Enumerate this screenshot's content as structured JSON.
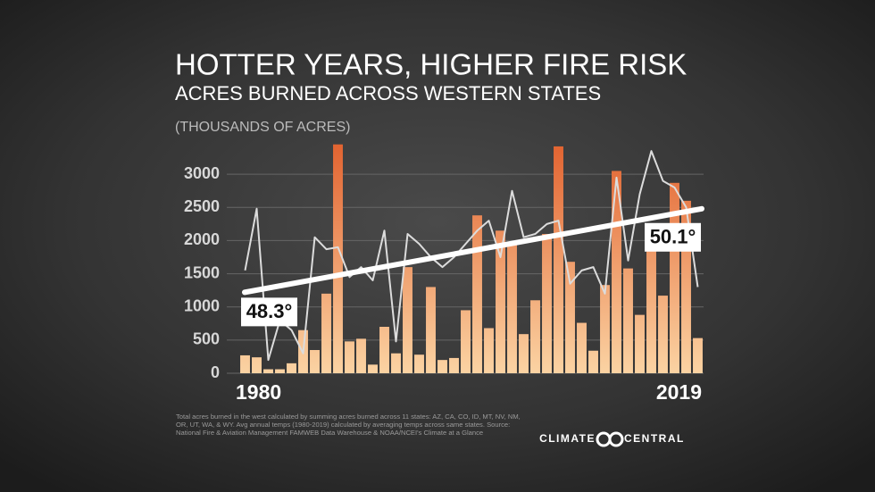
{
  "chart_data": {
    "type": "bar",
    "title": "HOTTER YEARS, HIGHER FIRE RISK",
    "subtitle": "ACRES BURNED ACROSS WESTERN STATES",
    "y_label": "(THOUSANDS OF ACRES)",
    "categories": [
      "1980",
      null,
      null,
      null,
      null,
      null,
      null,
      null,
      null,
      null,
      null,
      null,
      null,
      null,
      null,
      null,
      null,
      null,
      null,
      null,
      null,
      null,
      null,
      null,
      null,
      null,
      null,
      null,
      null,
      null,
      null,
      null,
      null,
      null,
      null,
      null,
      null,
      null,
      null,
      "2019"
    ],
    "series": [
      {
        "type": "bar",
        "color": "#f2a06a",
        "gradient": [
          "#fbd3a3",
          "#e2622f"
        ],
        "values": [
          270,
          240,
          60,
          60,
          150,
          650,
          350,
          1200,
          3450,
          480,
          520,
          130,
          700,
          300,
          1600,
          280,
          1300,
          200,
          230,
          950,
          2380,
          680,
          2150,
          1950,
          590,
          1100,
          2100,
          3420,
          1680,
          760,
          340,
          1330,
          3050,
          1580,
          880,
          1950,
          1170,
          2870,
          2600,
          530
        ]
      },
      {
        "type": "line",
        "color": "#dcdcdc",
        "values": [
          1550,
          2480,
          200,
          800,
          650,
          300,
          2050,
          1870,
          1900,
          1450,
          1600,
          1400,
          2150,
          480,
          2100,
          1950,
          1750,
          1600,
          1750,
          1950,
          2150,
          2300,
          1750,
          2750,
          2050,
          2100,
          2250,
          2300,
          1350,
          1550,
          1600,
          1200,
          2950,
          1700,
          2700,
          3350,
          2900,
          2800,
          2500,
          1300
        ]
      }
    ],
    "trend": {
      "color": "#ffffff",
      "values": [
        1220,
        2480
      ]
    },
    "annotations": [
      "48.3°",
      "50.1°"
    ],
    "ylim": [
      0,
      3500
    ],
    "yticks": [
      0,
      500,
      1000,
      1500,
      2000,
      2500,
      3000
    ],
    "grid": true,
    "footnote": "Total acres burned in the west calculated by summing acres burned across 11 states: AZ, CA, CO, ID, MT, NV, NM, OR, UT, WA, & WY. Avg annual temps (1980-2019) calculated by averaging temps across same states. Source: National Fire & Aviation Management FAMWEB Data Warehouse & NOAA/NCEI's Climate at a Glance",
    "branding": [
      "CLIMATE",
      "CENTRAL"
    ]
  }
}
